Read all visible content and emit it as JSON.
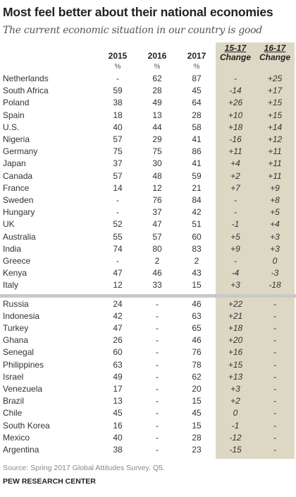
{
  "title": "Most feel better about their national economies",
  "subtitle": "The current economic situation in our country is good",
  "columns": {
    "y2015": "2015",
    "y2016": "2016",
    "y2017": "2017",
    "pct": "%",
    "change1_a": "15-17",
    "change1_b": "Change",
    "change2_a": "16-17",
    "change2_b": "Change"
  },
  "chart_data": {
    "type": "table",
    "title": "Most feel better about their national economies",
    "subtitle": "The current economic situation in our country is good",
    "columns": [
      "2015",
      "2016",
      "2017",
      "15-17 Change",
      "16-17 Change"
    ],
    "rows": [
      {
        "country": "Netherlands",
        "y2015": "-",
        "y2016": "62",
        "y2017": "87",
        "c1517": "-",
        "c1617": "+25"
      },
      {
        "country": "South Africa",
        "y2015": "59",
        "y2016": "28",
        "y2017": "45",
        "c1517": "-14",
        "c1617": "+17"
      },
      {
        "country": "Poland",
        "y2015": "38",
        "y2016": "49",
        "y2017": "64",
        "c1517": "+26",
        "c1617": "+15"
      },
      {
        "country": "Spain",
        "y2015": "18",
        "y2016": "13",
        "y2017": "28",
        "c1517": "+10",
        "c1617": "+15"
      },
      {
        "country": "U.S.",
        "y2015": "40",
        "y2016": "44",
        "y2017": "58",
        "c1517": "+18",
        "c1617": "+14"
      },
      {
        "country": "Nigeria",
        "y2015": "57",
        "y2016": "29",
        "y2017": "41",
        "c1517": "-16",
        "c1617": "+12"
      },
      {
        "country": "Germany",
        "y2015": "75",
        "y2016": "75",
        "y2017": "86",
        "c1517": "+11",
        "c1617": "+11"
      },
      {
        "country": "Japan",
        "y2015": "37",
        "y2016": "30",
        "y2017": "41",
        "c1517": "+4",
        "c1617": "+11"
      },
      {
        "country": "Canada",
        "y2015": "57",
        "y2016": "48",
        "y2017": "59",
        "c1517": "+2",
        "c1617": "+11"
      },
      {
        "country": "France",
        "y2015": "14",
        "y2016": "12",
        "y2017": "21",
        "c1517": "+7",
        "c1617": "+9"
      },
      {
        "country": "Sweden",
        "y2015": "-",
        "y2016": "76",
        "y2017": "84",
        "c1517": "-",
        "c1617": "+8"
      },
      {
        "country": "Hungary",
        "y2015": "-",
        "y2016": "37",
        "y2017": "42",
        "c1517": "-",
        "c1617": "+5"
      },
      {
        "country": "UK",
        "y2015": "52",
        "y2016": "47",
        "y2017": "51",
        "c1517": "-1",
        "c1617": "+4"
      },
      {
        "country": "Australia",
        "y2015": "55",
        "y2016": "57",
        "y2017": "60",
        "c1517": "+5",
        "c1617": "+3"
      },
      {
        "country": "India",
        "y2015": "74",
        "y2016": "80",
        "y2017": "83",
        "c1517": "+9",
        "c1617": "+3"
      },
      {
        "country": "Greece",
        "y2015": "-",
        "y2016": "2",
        "y2017": "2",
        "c1517": "-",
        "c1617": "0"
      },
      {
        "country": "Kenya",
        "y2015": "47",
        "y2016": "46",
        "y2017": "43",
        "c1517": "-4",
        "c1617": "-3"
      },
      {
        "country": "Italy",
        "y2015": "12",
        "y2016": "33",
        "y2017": "15",
        "c1517": "+3",
        "c1617": "-18"
      },
      {
        "country": "Russia",
        "y2015": "24",
        "y2016": "-",
        "y2017": "46",
        "c1517": "+22",
        "c1617": "-"
      },
      {
        "country": "Indonesia",
        "y2015": "42",
        "y2016": "-",
        "y2017": "63",
        "c1517": "+21",
        "c1617": "-"
      },
      {
        "country": "Turkey",
        "y2015": "47",
        "y2016": "-",
        "y2017": "65",
        "c1517": "+18",
        "c1617": "-"
      },
      {
        "country": "Ghana",
        "y2015": "26",
        "y2016": "-",
        "y2017": "46",
        "c1517": "+20",
        "c1617": "-"
      },
      {
        "country": "Senegal",
        "y2015": "60",
        "y2016": "-",
        "y2017": "76",
        "c1517": "+16",
        "c1617": "-"
      },
      {
        "country": "Philippines",
        "y2015": "63",
        "y2016": "-",
        "y2017": "78",
        "c1517": "+15",
        "c1617": "-"
      },
      {
        "country": "Israel",
        "y2015": "49",
        "y2016": "-",
        "y2017": "62",
        "c1517": "+13",
        "c1617": "-"
      },
      {
        "country": "Venezuela",
        "y2015": "17",
        "y2016": "-",
        "y2017": "20",
        "c1517": "+3",
        "c1617": "-"
      },
      {
        "country": "Brazil",
        "y2015": "13",
        "y2016": "-",
        "y2017": "15",
        "c1517": "+2",
        "c1617": "-"
      },
      {
        "country": "Chile",
        "y2015": "45",
        "y2016": "-",
        "y2017": "45",
        "c1517": "0",
        "c1617": "-"
      },
      {
        "country": "South Korea",
        "y2015": "16",
        "y2016": "-",
        "y2017": "15",
        "c1517": "-1",
        "c1617": "-"
      },
      {
        "country": "Mexico",
        "y2015": "40",
        "y2016": "-",
        "y2017": "28",
        "c1517": "-12",
        "c1617": "-"
      },
      {
        "country": "Argentina",
        "y2015": "38",
        "y2016": "-",
        "y2017": "23",
        "c1517": "-15",
        "c1617": "-"
      }
    ]
  },
  "source": "Source: Spring 2017 Global Attitudes Survey. Q5.",
  "org": "PEW RESEARCH CENTER",
  "colors": {
    "change_shade": "#ddd8c4",
    "divider": "#c9c9c9"
  }
}
